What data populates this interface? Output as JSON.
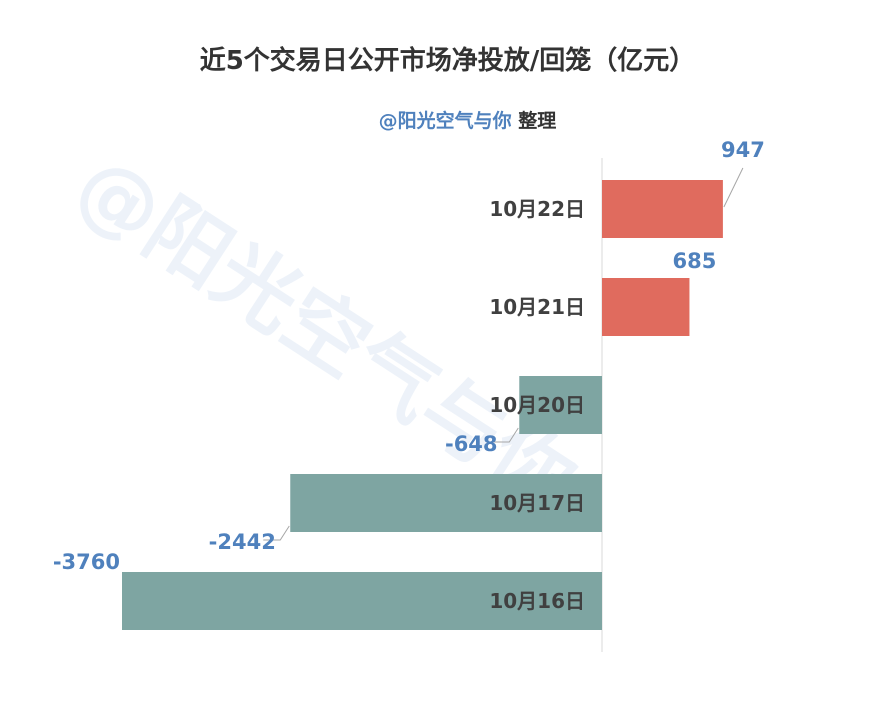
{
  "title": "近5个交易日公开市场净投放/回笼（亿元）",
  "subtitle": {
    "name": "@阳光空气与你",
    "suffix": " 整理"
  },
  "watermark": "@阳光空气与你",
  "colors": {
    "positive": "#e06b5e",
    "negative": "#7ea5a2",
    "label": "#4f81bd",
    "axis": "#d9d9d9"
  },
  "chart_data": {
    "type": "bar",
    "orientation": "horizontal",
    "categories": [
      "10月22日",
      "10月21日",
      "10月20日",
      "10月17日",
      "10月16日"
    ],
    "values": [
      947,
      685,
      -648,
      -2442,
      -3760
    ],
    "title": "近5个交易日公开市场净投放/回笼（亿元）",
    "xlabel": "",
    "ylabel": "",
    "xlim": [
      -3760,
      947
    ],
    "grid": false,
    "legend": "none"
  }
}
